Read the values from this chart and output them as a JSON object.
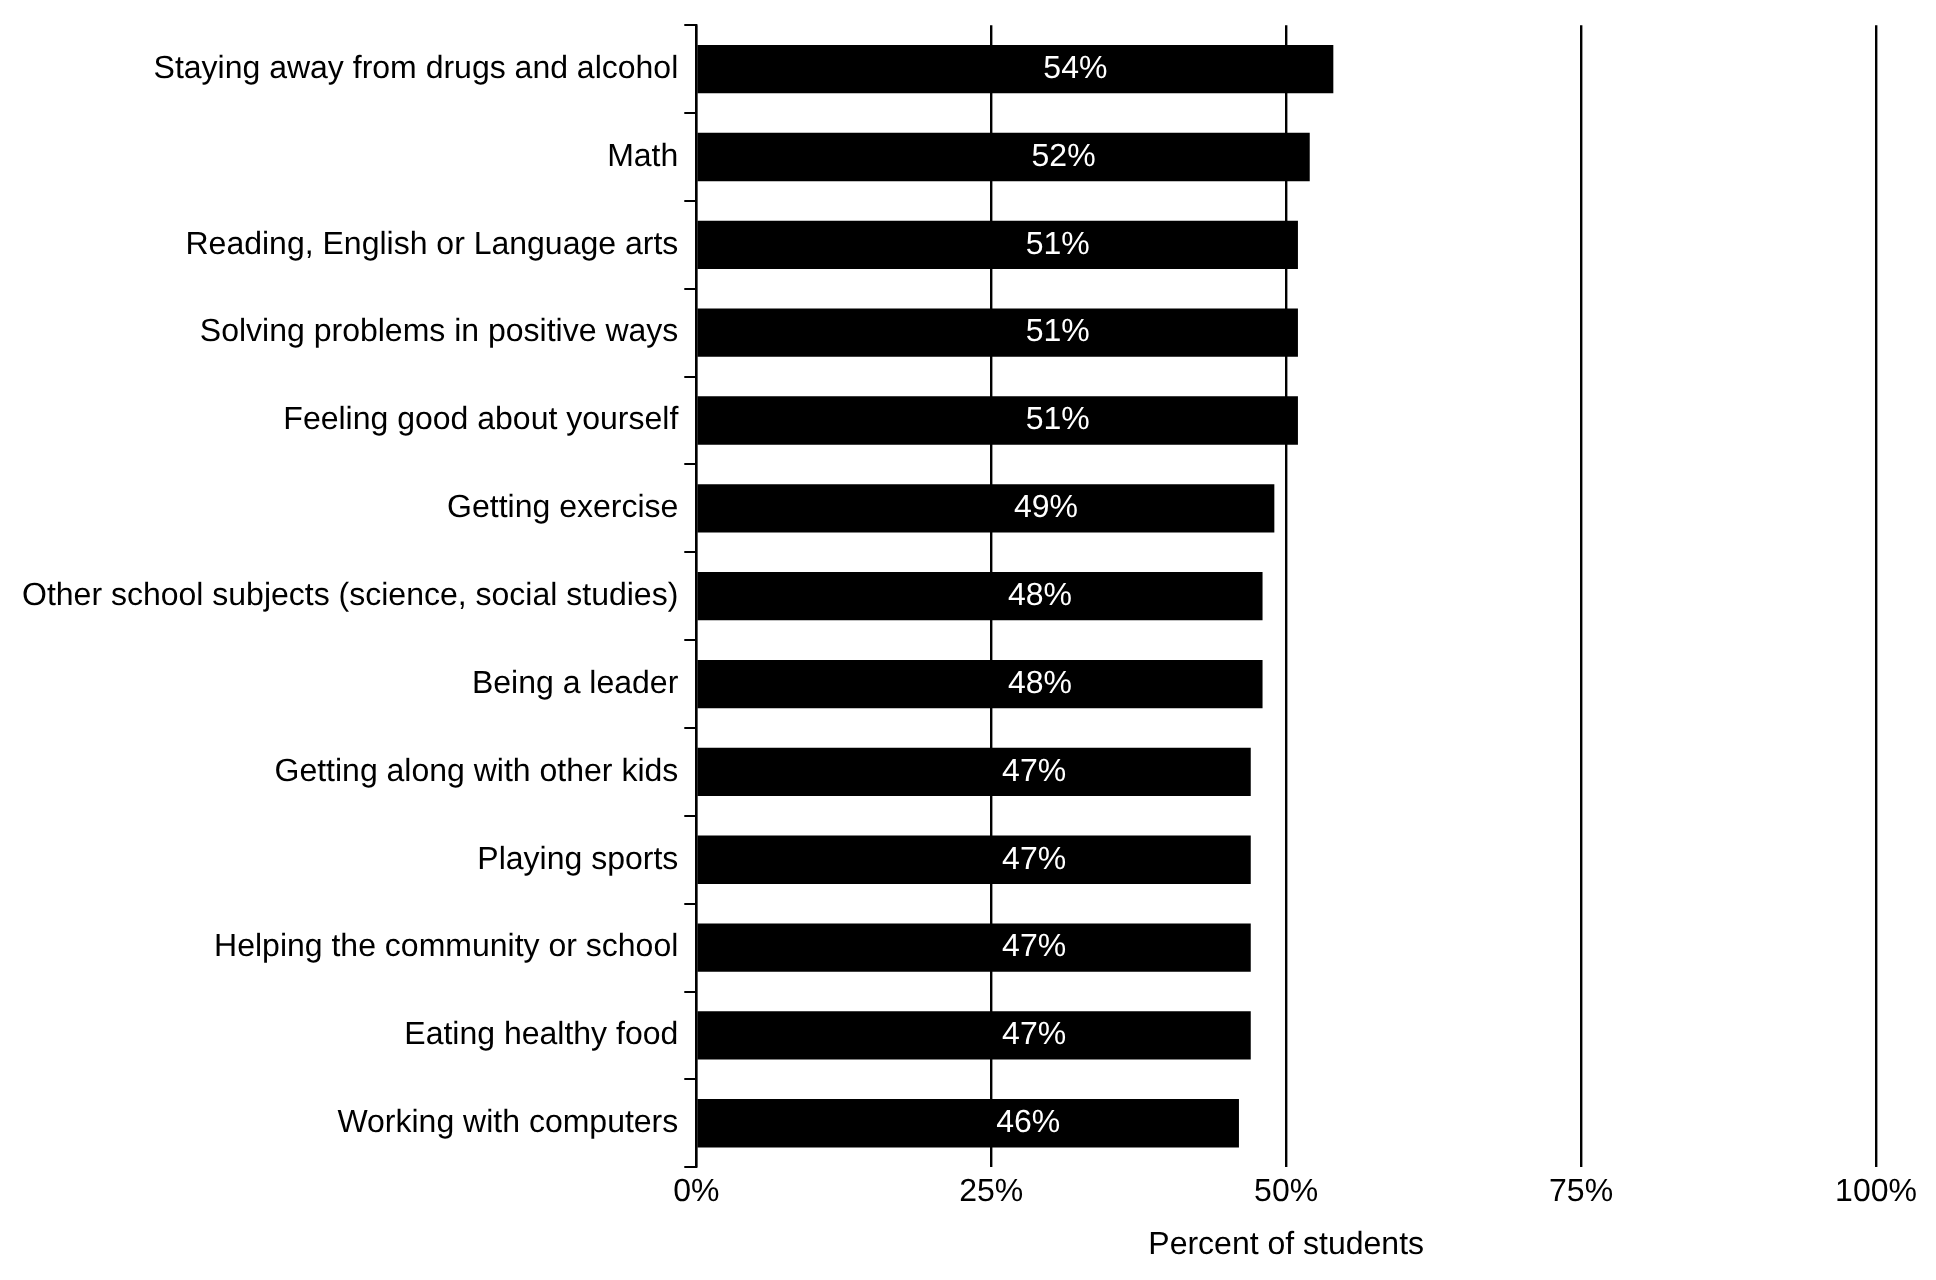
{
  "chart_data": {
    "type": "bar",
    "orientation": "horizontal",
    "xlabel": "Percent of students",
    "categories": [
      "Staying away from drugs and alcohol",
      "Math",
      "Reading, English or Language arts",
      "Solving problems in positive ways",
      "Feeling good about yourself",
      "Getting exercise",
      "Other school subjects (science, social studies)",
      "Being a leader",
      "Getting along with other kids",
      "Playing sports",
      "Helping the community or school",
      "Eating healthy food",
      "Working with computers"
    ],
    "values": [
      54,
      52,
      51,
      51,
      51,
      49,
      48,
      48,
      47,
      47,
      47,
      47,
      46
    ],
    "value_labels": [
      "54%",
      "52%",
      "51%",
      "51%",
      "51%",
      "49%",
      "48%",
      "48%",
      "47%",
      "47%",
      "47%",
      "47%",
      "46%"
    ],
    "color": "#000000",
    "xlim": [
      0,
      100
    ],
    "xticks": [
      {
        "value": 0,
        "label": "0%"
      },
      {
        "value": 25,
        "label": "25%"
      },
      {
        "value": 50,
        "label": "50%"
      },
      {
        "value": 75,
        "label": "75%"
      },
      {
        "value": 100,
        "label": "100%"
      }
    ],
    "grid": "x",
    "legend": false
  }
}
